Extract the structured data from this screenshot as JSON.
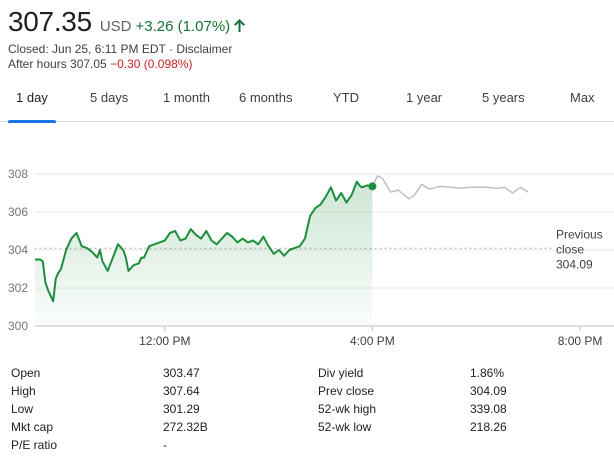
{
  "quote": {
    "price": "307.35",
    "currency": "USD",
    "change": "+3.26 (1.07%)",
    "closed_line": "Closed: Jun 25, 6:11 PM EDT · ",
    "disclaimer": "Disclaimer",
    "after_hours_label": "After hours 307.05 ",
    "after_hours_change": "−0.30 (0.098%)",
    "colors": {
      "positive": "#137333",
      "negative": "#c5221f",
      "line": "#1e8e3e",
      "after_hours_line": "#bdc1c6"
    }
  },
  "tabs": [
    {
      "label": "1 day",
      "active": true
    },
    {
      "label": "5 days"
    },
    {
      "label": "1 month"
    },
    {
      "label": "6 months"
    },
    {
      "label": "YTD"
    },
    {
      "label": "1 year"
    },
    {
      "label": "5 years"
    },
    {
      "label": "Max"
    }
  ],
  "chart_data": {
    "type": "line",
    "y_ticks": [
      "308",
      "306",
      "304",
      "302",
      "300"
    ],
    "ylim": [
      300,
      309
    ],
    "x_ticks": [
      "12:00 PM",
      "4:00 PM",
      "8:00 PM"
    ],
    "x_tick_hours": [
      12,
      16,
      20
    ],
    "xlim_hours": [
      9.5,
      20.5
    ],
    "prev_close_label_1": "Previous",
    "prev_close_label_2": "close",
    "prev_close_value": "304.09",
    "prev_close": 304.09,
    "grid": true,
    "series": [
      {
        "session": "regular",
        "x": [
          9.5,
          9.6,
          9.65,
          9.7,
          9.75,
          9.8,
          9.85,
          9.9,
          9.95,
          10.0,
          10.1,
          10.2,
          10.3,
          10.4,
          10.5,
          10.6,
          10.7,
          10.75,
          10.8,
          10.9,
          11.0,
          11.1,
          11.2,
          11.25,
          11.3,
          11.4,
          11.5,
          11.55,
          11.6,
          11.7,
          11.8,
          11.9,
          12.0,
          12.1,
          12.2,
          12.3,
          12.4,
          12.5,
          12.6,
          12.7,
          12.8,
          12.9,
          13.0,
          13.1,
          13.2,
          13.3,
          13.4,
          13.5,
          13.6,
          13.7,
          13.8,
          13.9,
          14.0,
          14.1,
          14.2,
          14.3,
          14.4,
          14.5,
          14.6,
          14.7,
          14.8,
          14.9,
          15.0,
          15.1,
          15.2,
          15.3,
          15.4,
          15.5,
          15.6,
          15.7,
          15.75,
          15.8,
          15.9,
          16.0
        ],
        "y": [
          303.5,
          303.5,
          303.4,
          302.3,
          301.9,
          301.6,
          301.3,
          302.5,
          302.8,
          303.0,
          304.0,
          304.6,
          304.9,
          304.2,
          304.1,
          303.9,
          303.6,
          304.0,
          303.4,
          302.9,
          303.6,
          304.3,
          304.0,
          303.6,
          302.9,
          303.2,
          303.3,
          303.6,
          303.6,
          304.2,
          304.3,
          304.4,
          304.5,
          304.9,
          305.0,
          304.5,
          304.6,
          305.1,
          304.8,
          304.6,
          305.0,
          304.5,
          304.3,
          304.6,
          304.9,
          304.7,
          304.4,
          304.6,
          304.4,
          304.5,
          304.3,
          304.7,
          304.2,
          303.8,
          304.0,
          303.7,
          304.0,
          304.1,
          304.2,
          304.6,
          305.8,
          306.2,
          306.4,
          306.8,
          307.3,
          306.6,
          307.0,
          306.5,
          306.9,
          307.6,
          307.4,
          307.3,
          307.4,
          307.35
        ],
        "color": "#1e8e3e"
      },
      {
        "session": "after_hours",
        "x": [
          16.0,
          16.1,
          16.2,
          16.35,
          16.5,
          16.7,
          16.8,
          16.95,
          17.1,
          17.3,
          17.5,
          17.7,
          17.9,
          18.2,
          18.4,
          18.55,
          18.7,
          18.85,
          19.0
        ],
        "y": [
          307.35,
          307.9,
          307.75,
          307.05,
          307.15,
          306.7,
          306.85,
          307.45,
          307.2,
          307.35,
          307.3,
          307.25,
          307.3,
          307.3,
          307.25,
          307.3,
          307.0,
          307.3,
          307.05
        ],
        "color": "#bdc1c6"
      }
    ],
    "last_point": {
      "x": 16.0,
      "y": 307.35
    }
  },
  "stats": {
    "rows": [
      {
        "l1": "Open",
        "v1": "303.47",
        "l2": "Div yield",
        "v2": "1.86%"
      },
      {
        "l1": "High",
        "v1": "307.64",
        "l2": "Prev close",
        "v2": "304.09"
      },
      {
        "l1": "Low",
        "v1": "301.29",
        "l2": "52-wk high",
        "v2": "339.08"
      },
      {
        "l1": "Mkt cap",
        "v1": "272.32B",
        "l2": "52-wk low",
        "v2": "218.26"
      },
      {
        "l1": "P/E ratio",
        "v1": "-",
        "l2": "",
        "v2": ""
      }
    ]
  }
}
